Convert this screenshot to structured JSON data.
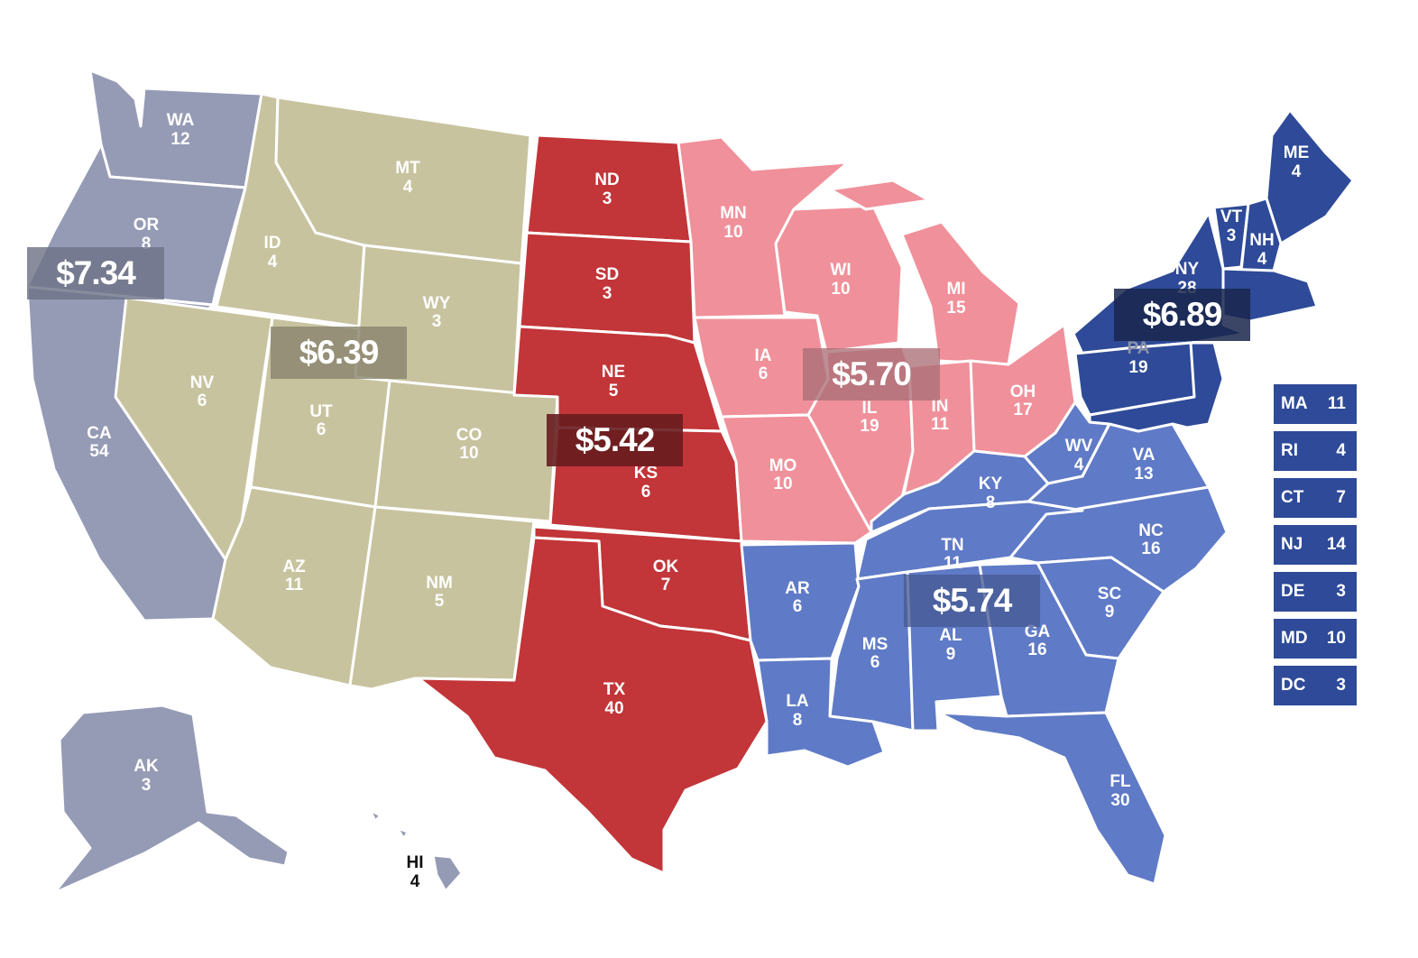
{
  "colors": {
    "west": "#959bb5",
    "mountain": "#c8c39f",
    "plains": "#c23538",
    "midwest": "#f0909a",
    "south": "#5f7ac6",
    "northeast": "#2e4a98"
  },
  "regions": {
    "west": {
      "price": "$7.34"
    },
    "mountain": {
      "price": "$6.39"
    },
    "plains": {
      "price": "$5.42"
    },
    "midwest": {
      "price": "$5.70"
    },
    "south": {
      "price": "$5.74"
    },
    "northeast": {
      "price": "$6.89"
    }
  },
  "states": {
    "WA": {
      "abbr": "WA",
      "votes": "12"
    },
    "OR": {
      "abbr": "OR",
      "votes": "8"
    },
    "CA": {
      "abbr": "CA",
      "votes": "54"
    },
    "AK": {
      "abbr": "AK",
      "votes": "3"
    },
    "HI": {
      "abbr": "HI",
      "votes": "4"
    },
    "ID": {
      "abbr": "ID",
      "votes": "4"
    },
    "MT": {
      "abbr": "MT",
      "votes": "4"
    },
    "WY": {
      "abbr": "WY",
      "votes": "3"
    },
    "NV": {
      "abbr": "NV",
      "votes": "6"
    },
    "UT": {
      "abbr": "UT",
      "votes": "6"
    },
    "CO": {
      "abbr": "CO",
      "votes": "10"
    },
    "AZ": {
      "abbr": "AZ",
      "votes": "11"
    },
    "NM": {
      "abbr": "NM",
      "votes": "5"
    },
    "ND": {
      "abbr": "ND",
      "votes": "3"
    },
    "SD": {
      "abbr": "SD",
      "votes": "3"
    },
    "NE": {
      "abbr": "NE",
      "votes": "5"
    },
    "KS": {
      "abbr": "KS",
      "votes": "6"
    },
    "OK": {
      "abbr": "OK",
      "votes": "7"
    },
    "TX": {
      "abbr": "TX",
      "votes": "40"
    },
    "MN": {
      "abbr": "MN",
      "votes": "10"
    },
    "WI": {
      "abbr": "WI",
      "votes": "10"
    },
    "MI": {
      "abbr": "MI",
      "votes": "15"
    },
    "IA": {
      "abbr": "IA",
      "votes": "6"
    },
    "IL": {
      "abbr": "IL",
      "votes": "19"
    },
    "IN": {
      "abbr": "IN",
      "votes": "11"
    },
    "OH": {
      "abbr": "OH",
      "votes": "17"
    },
    "MO": {
      "abbr": "MO",
      "votes": "10"
    },
    "KY": {
      "abbr": "KY",
      "votes": "8"
    },
    "WV": {
      "abbr": "WV",
      "votes": "4"
    },
    "VA": {
      "abbr": "VA",
      "votes": "13"
    },
    "NC": {
      "abbr": "NC",
      "votes": "16"
    },
    "TN": {
      "abbr": "TN",
      "votes": "11"
    },
    "SC": {
      "abbr": "SC",
      "votes": "9"
    },
    "AR": {
      "abbr": "AR",
      "votes": "6"
    },
    "MS": {
      "abbr": "MS",
      "votes": "6"
    },
    "AL": {
      "abbr": "AL",
      "votes": "9"
    },
    "GA": {
      "abbr": "GA",
      "votes": "16"
    },
    "LA": {
      "abbr": "LA",
      "votes": "8"
    },
    "FL": {
      "abbr": "FL",
      "votes": "30"
    },
    "ME": {
      "abbr": "ME",
      "votes": "4"
    },
    "VT": {
      "abbr": "VT",
      "votes": "3"
    },
    "NH": {
      "abbr": "NH",
      "votes": "4"
    },
    "NY": {
      "abbr": "NY",
      "votes": "28"
    },
    "PA": {
      "abbr": "PA",
      "votes": "19"
    }
  },
  "small_states": [
    {
      "abbr": "MA",
      "votes": "11"
    },
    {
      "abbr": "RI",
      "votes": "4"
    },
    {
      "abbr": "CT",
      "votes": "7"
    },
    {
      "abbr": "NJ",
      "votes": "14"
    },
    {
      "abbr": "DE",
      "votes": "3"
    },
    {
      "abbr": "MD",
      "votes": "10"
    },
    {
      "abbr": "DC",
      "votes": "3"
    }
  ]
}
